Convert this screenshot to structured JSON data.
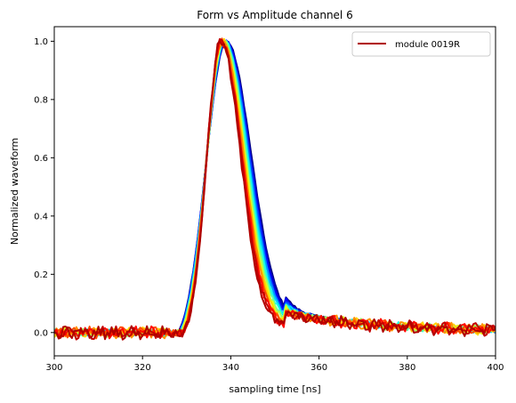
{
  "chart_data": {
    "type": "line",
    "title": "Form vs Amplitude channel 6",
    "xlabel": "sampling time [ns]",
    "ylabel": "Normalized waveform",
    "xlim": [
      300,
      400
    ],
    "ylim": [
      -0.08,
      1.05
    ],
    "x_ticks": [
      300,
      320,
      340,
      360,
      380,
      400
    ],
    "x_tick_labels": [
      "300",
      "320",
      "340",
      "360",
      "380",
      "400"
    ],
    "y_ticks": [
      0.0,
      0.2,
      0.4,
      0.6,
      0.8,
      1.0
    ],
    "y_tick_labels": [
      "0.0",
      "0.2",
      "0.4",
      "0.6",
      "0.8",
      "1.0"
    ],
    "grid": false,
    "legend": {
      "placement": "top-right",
      "entries": [
        {
          "label": "module 0019R",
          "color": "#b00000"
        }
      ]
    },
    "colormap": "jet",
    "series_count": 16,
    "pulse_shape": {
      "baseline": 0.0,
      "rise_start_x": 327,
      "peak_x_range": [
        337.5,
        339.0
      ],
      "peak_y": 1.0,
      "fall_reaches_0_05_x": 356,
      "tail_end_value_at_400": 0.0
    },
    "series_description": "Family of normalized pulse waveforms; colors vary from blue (widest) to red (narrowest)."
  }
}
